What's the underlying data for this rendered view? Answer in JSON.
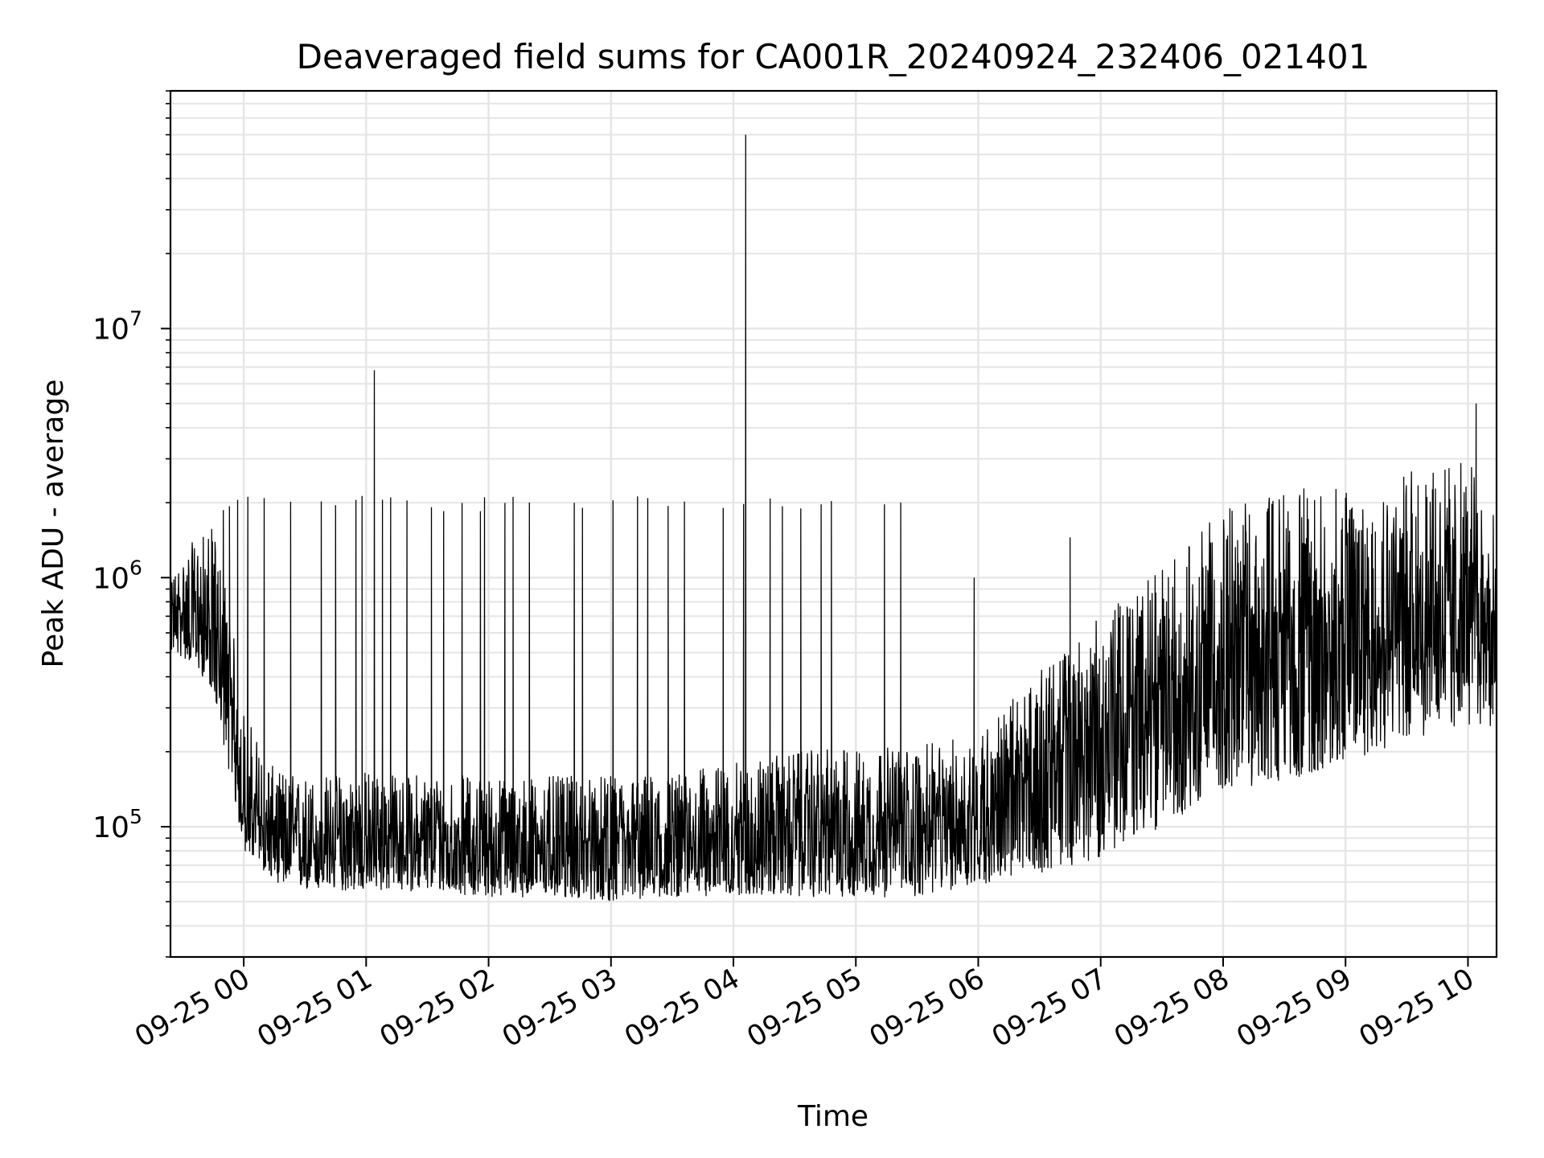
{
  "chart_data": {
    "type": "line",
    "title": "Deaveraged field sums for CA001R_20240924_232406_021401",
    "xlabel": "Time",
    "ylabel": "Peak ADU - average",
    "y_scale": "log",
    "ylim": [
      30000,
      90000000
    ],
    "xlim": [
      "2024-09-24 23:24:06",
      "2024-09-25 10:14:01"
    ],
    "grid": true,
    "legend": "none",
    "line_color": "#000000",
    "grid_color": "#e5e5e5",
    "x_ticks": [
      {
        "time": "2024-09-25 00:00",
        "label": "09-25 00"
      },
      {
        "time": "2024-09-25 01:00",
        "label": "09-25 01"
      },
      {
        "time": "2024-09-25 02:00",
        "label": "09-25 02"
      },
      {
        "time": "2024-09-25 03:00",
        "label": "09-25 03"
      },
      {
        "time": "2024-09-25 04:00",
        "label": "09-25 04"
      },
      {
        "time": "2024-09-25 05:00",
        "label": "09-25 05"
      },
      {
        "time": "2024-09-25 06:00",
        "label": "09-25 06"
      },
      {
        "time": "2024-09-25 07:00",
        "label": "09-25 07"
      },
      {
        "time": "2024-09-25 08:00",
        "label": "09-25 08"
      },
      {
        "time": "2024-09-25 09:00",
        "label": "09-25 09"
      },
      {
        "time": "2024-09-25 10:00",
        "label": "09-25 10"
      }
    ],
    "y_ticks": [
      {
        "value": 100000,
        "base": "10",
        "exp": "5"
      },
      {
        "value": 1000000,
        "base": "10",
        "exp": "6"
      },
      {
        "value": 10000000,
        "base": "10",
        "exp": "7"
      }
    ],
    "series": [
      {
        "color": "#000000",
        "envelope": [
          {
            "t": "2024-09-24 23:24",
            "low": 500000,
            "median": 750000,
            "high": 1000000
          },
          {
            "t": "2024-09-24 23:35",
            "low": 450000,
            "median": 700000,
            "high": 1400000
          },
          {
            "t": "2024-09-24 23:45",
            "low": 350000,
            "median": 600000,
            "high": 1600000
          },
          {
            "t": "2024-09-24 23:52",
            "low": 180000,
            "median": 350000,
            "high": 900000
          },
          {
            "t": "2024-09-25 00:00",
            "low": 80000,
            "median": 120000,
            "high": 300000
          },
          {
            "t": "2024-09-25 00:15",
            "low": 60000,
            "median": 90000,
            "high": 170000
          },
          {
            "t": "2024-09-25 00:30",
            "low": 55000,
            "median": 85000,
            "high": 160000
          },
          {
            "t": "2024-09-25 01:00",
            "low": 55000,
            "median": 90000,
            "high": 170000
          },
          {
            "t": "2024-09-25 01:30",
            "low": 55000,
            "median": 88000,
            "high": 165000
          },
          {
            "t": "2024-09-25 02:00",
            "low": 52000,
            "median": 85000,
            "high": 160000
          },
          {
            "t": "2024-09-25 02:30",
            "low": 52000,
            "median": 85000,
            "high": 160000
          },
          {
            "t": "2024-09-25 03:00",
            "low": 50000,
            "median": 85000,
            "high": 160000
          },
          {
            "t": "2024-09-25 03:30",
            "low": 52000,
            "median": 88000,
            "high": 165000
          },
          {
            "t": "2024-09-25 04:00",
            "low": 53000,
            "median": 95000,
            "high": 180000
          },
          {
            "t": "2024-09-25 04:30",
            "low": 52000,
            "median": 100000,
            "high": 200000
          },
          {
            "t": "2024-09-25 05:00",
            "low": 52000,
            "median": 100000,
            "high": 210000
          },
          {
            "t": "2024-09-25 05:30",
            "low": 52000,
            "median": 100000,
            "high": 210000
          },
          {
            "t": "2024-09-25 06:00",
            "low": 58000,
            "median": 110000,
            "high": 240000
          },
          {
            "t": "2024-09-25 06:30",
            "low": 65000,
            "median": 170000,
            "high": 420000
          },
          {
            "t": "2024-09-25 07:00",
            "low": 75000,
            "median": 240000,
            "high": 700000
          },
          {
            "t": "2024-09-25 07:30",
            "low": 100000,
            "median": 350000,
            "high": 1100000
          },
          {
            "t": "2024-09-25 08:00",
            "low": 140000,
            "median": 500000,
            "high": 1900000
          },
          {
            "t": "2024-09-25 08:30",
            "low": 150000,
            "median": 600000,
            "high": 2300000
          },
          {
            "t": "2024-09-25 09:00",
            "low": 180000,
            "median": 650000,
            "high": 2300000
          },
          {
            "t": "2024-09-25 09:30",
            "low": 220000,
            "median": 750000,
            "high": 2700000
          },
          {
            "t": "2024-09-25 10:00",
            "low": 250000,
            "median": 800000,
            "high": 3000000
          },
          {
            "t": "2024-09-25 10:14",
            "low": 250000,
            "median": 650000,
            "high": 1800000
          }
        ],
        "spikes": [
          {
            "t": "2024-09-25 01:04",
            "value": 6800000
          },
          {
            "t": "2024-09-25 04:06",
            "value": 60000000
          },
          {
            "t": "2024-09-25 05:58",
            "value": 1000000
          },
          {
            "t": "2024-09-25 06:45",
            "value": 1450000
          },
          {
            "t": "2024-09-25 10:04",
            "value": 5000000
          }
        ],
        "burst_level": 2100000,
        "burst_times": [
          "2024-09-24 23:50",
          "2024-09-24 23:53",
          "2024-09-24 23:57",
          "2024-09-25 00:02",
          "2024-09-25 00:10",
          "2024-09-25 00:23",
          "2024-09-25 00:38",
          "2024-09-25 00:45",
          "2024-09-25 00:55",
          "2024-09-25 00:58",
          "2024-09-25 01:08",
          "2024-09-25 01:12",
          "2024-09-25 01:20",
          "2024-09-25 01:32",
          "2024-09-25 01:38",
          "2024-09-25 01:47",
          "2024-09-25 01:56",
          "2024-09-25 01:58",
          "2024-09-25 02:08",
          "2024-09-25 02:12",
          "2024-09-25 02:20",
          "2024-09-25 02:42",
          "2024-09-25 02:46",
          "2024-09-25 03:01",
          "2024-09-25 03:13",
          "2024-09-25 03:18",
          "2024-09-25 03:28",
          "2024-09-25 03:36",
          "2024-09-25 03:55",
          "2024-09-25 04:05",
          "2024-09-25 04:18",
          "2024-09-25 04:24",
          "2024-09-25 04:33",
          "2024-09-25 04:43",
          "2024-09-25 04:48",
          "2024-09-25 05:14",
          "2024-09-25 05:22"
        ]
      }
    ]
  }
}
